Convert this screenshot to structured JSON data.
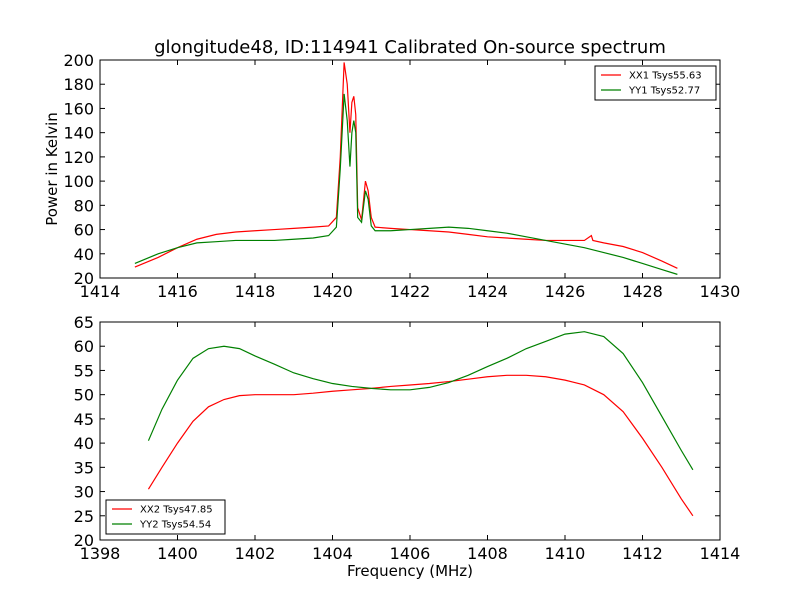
{
  "title": "glongitude48, ID:114941 Calibrated On-source spectrum",
  "colors": {
    "red": "#ff0000",
    "green": "#008000"
  },
  "chart_data": [
    {
      "type": "line",
      "ylabel": "Power in Kelvin",
      "xlabel": "",
      "xlim": [
        1414,
        1430
      ],
      "ylim": [
        20,
        200
      ],
      "xticks": [
        1414,
        1416,
        1418,
        1420,
        1422,
        1424,
        1426,
        1428,
        1430
      ],
      "yticks": [
        20,
        40,
        60,
        80,
        100,
        120,
        140,
        160,
        180,
        200
      ],
      "legend": "top-right",
      "series": [
        {
          "name": "XX1 Tsys55.63",
          "color": "#ff0000",
          "x": [
            1414.9,
            1415.5,
            1416.0,
            1416.5,
            1417.0,
            1417.5,
            1418.0,
            1418.5,
            1419.0,
            1419.5,
            1419.9,
            1420.1,
            1420.2,
            1420.3,
            1420.38,
            1420.45,
            1420.5,
            1420.55,
            1420.6,
            1420.65,
            1420.75,
            1420.85,
            1420.92,
            1421.0,
            1421.1,
            1421.5,
            1422.0,
            1422.5,
            1423.0,
            1423.5,
            1424.0,
            1424.5,
            1425.0,
            1425.5,
            1426.0,
            1426.5,
            1426.68,
            1426.72,
            1427.0,
            1427.5,
            1428.0,
            1428.5,
            1428.9
          ],
          "values": [
            29,
            37,
            45,
            52,
            56,
            58,
            59,
            60,
            61,
            62,
            63,
            70,
            120,
            198,
            180,
            140,
            165,
            170,
            155,
            78,
            68,
            100,
            92,
            70,
            62,
            61,
            60,
            59,
            58,
            56,
            54,
            53,
            52,
            51,
            51,
            51,
            55,
            51,
            49,
            46,
            41,
            34,
            28
          ]
        },
        {
          "name": "YY1 Tsys52.77",
          "color": "#008000",
          "x": [
            1414.9,
            1415.5,
            1416.0,
            1416.5,
            1417.0,
            1417.5,
            1418.0,
            1418.5,
            1419.0,
            1419.5,
            1419.9,
            1420.1,
            1420.2,
            1420.3,
            1420.38,
            1420.45,
            1420.5,
            1420.55,
            1420.6,
            1420.65,
            1420.75,
            1420.85,
            1420.92,
            1421.0,
            1421.1,
            1421.5,
            1422.0,
            1422.5,
            1423.0,
            1423.5,
            1424.0,
            1424.5,
            1425.0,
            1425.5,
            1426.0,
            1426.5,
            1427.0,
            1427.5,
            1428.0,
            1428.5,
            1428.9
          ],
          "values": [
            32,
            40,
            45,
            49,
            50,
            51,
            51,
            51,
            52,
            53,
            55,
            62,
            110,
            172,
            150,
            112,
            140,
            150,
            140,
            70,
            66,
            92,
            85,
            63,
            59,
            59,
            60,
            61,
            62,
            61,
            59,
            57,
            54,
            51,
            48,
            45,
            41,
            37,
            32,
            27,
            23
          ]
        }
      ]
    },
    {
      "type": "line",
      "ylabel": "",
      "xlabel": "Frequency (MHz)",
      "xlim": [
        1398,
        1414
      ],
      "ylim": [
        20,
        65
      ],
      "xticks": [
        1398,
        1400,
        1402,
        1404,
        1406,
        1408,
        1410,
        1412,
        1414
      ],
      "yticks": [
        20,
        25,
        30,
        35,
        40,
        45,
        50,
        55,
        60,
        65
      ],
      "legend": "bottom-left",
      "series": [
        {
          "name": "XX2 Tsys47.85",
          "color": "#ff0000",
          "x": [
            1399.25,
            1399.6,
            1400.0,
            1400.4,
            1400.8,
            1401.2,
            1401.6,
            1402.0,
            1402.5,
            1403.0,
            1403.5,
            1404.0,
            1404.5,
            1405.0,
            1405.5,
            1406.0,
            1406.5,
            1407.0,
            1407.5,
            1408.0,
            1408.5,
            1409.0,
            1409.5,
            1410.0,
            1410.5,
            1411.0,
            1411.5,
            1412.0,
            1412.5,
            1413.0,
            1413.3
          ],
          "values": [
            30.5,
            35,
            40,
            44.5,
            47.5,
            49,
            49.8,
            50,
            50,
            50,
            50.3,
            50.7,
            51,
            51.3,
            51.7,
            52,
            52.3,
            52.7,
            53.2,
            53.7,
            54,
            54,
            53.7,
            53,
            52,
            50,
            46.5,
            41,
            35,
            28.5,
            25
          ]
        },
        {
          "name": "YY2 Tsys54.54",
          "color": "#008000",
          "x": [
            1399.25,
            1399.6,
            1400.0,
            1400.4,
            1400.8,
            1401.2,
            1401.6,
            1402.0,
            1402.5,
            1403.0,
            1403.5,
            1404.0,
            1404.5,
            1405.0,
            1405.5,
            1406.0,
            1406.5,
            1407.0,
            1407.5,
            1408.0,
            1408.5,
            1409.0,
            1409.5,
            1410.0,
            1410.5,
            1411.0,
            1411.5,
            1412.0,
            1412.5,
            1413.0,
            1413.3
          ],
          "values": [
            40.5,
            47,
            53,
            57.5,
            59.5,
            60,
            59.5,
            58,
            56.3,
            54.5,
            53.3,
            52.3,
            51.7,
            51.3,
            51,
            51,
            51.5,
            52.5,
            54,
            55.8,
            57.5,
            59.5,
            61,
            62.5,
            63,
            62,
            58.5,
            52.5,
            45.5,
            38.5,
            34.5
          ]
        }
      ]
    }
  ]
}
